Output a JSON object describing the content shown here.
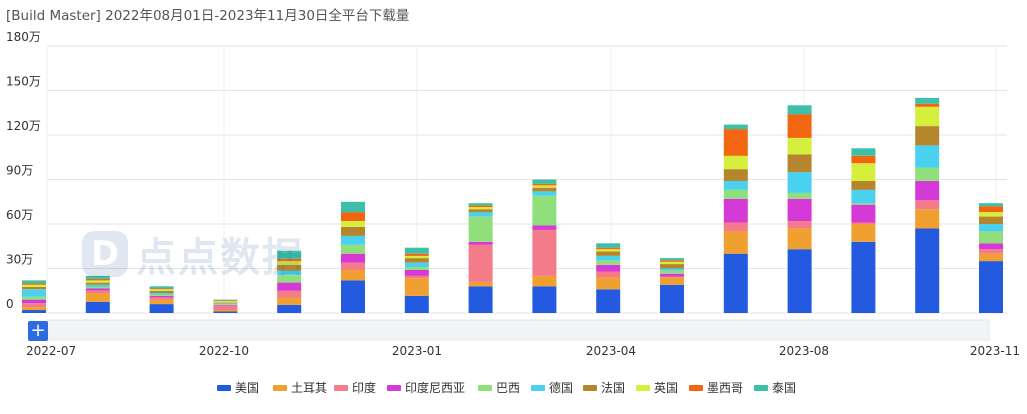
{
  "title": "[Build Master]  2022年08月01日-2023年11月30日全平台下载量",
  "watermark": {
    "text": "点点数据",
    "mark": "D"
  },
  "zoom_label": "+",
  "colors": {
    "美国": "#245ae0",
    "土耳其": "#f0a030",
    "印度": "#f47b89",
    "印度尼西亚": "#d63ad6",
    "巴西": "#8fe07a",
    "德国": "#4ad1f0",
    "法国": "#b5862e",
    "英国": "#d6ee3c",
    "墨西哥": "#f26511",
    "泰国": "#3ebfa8"
  },
  "chart_data": {
    "type": "bar",
    "stacked": true,
    "title": "[Build Master]  2022年08月01日-2023年11月30日全平台下载量",
    "y_ticks": [
      "0",
      "30万",
      "60万",
      "90万",
      "120万",
      "150万",
      "180万"
    ],
    "ylim": [
      0,
      1800000
    ],
    "x_ticks": [
      "2022-07",
      "2022-10",
      "2023-01",
      "2023-04",
      "2023-08",
      "2023-11"
    ],
    "legend_position": "bottom",
    "grid": true,
    "categories": [
      "2022-08",
      "2022-09",
      "2022-10",
      "2022-11",
      "2022-12",
      "2023-01",
      "2023-02",
      "2023-03",
      "2023-04",
      "2023-05",
      "2023-06",
      "2023-07",
      "2023-08",
      "2023-09",
      "2023-10",
      "2023-11"
    ],
    "series": [
      {
        "name": "美国",
        "values": [
          20000,
          75000,
          60000,
          10000,
          55000,
          220000,
          115000,
          180000,
          180000,
          160000,
          190000,
          400000,
          430000,
          480000,
          570000,
          350000
        ]
      },
      {
        "name": "土耳其",
        "values": [
          20000,
          60000,
          30000,
          10000,
          50000,
          70000,
          120000,
          30000,
          70000,
          80000,
          50000,
          150000,
          140000,
          120000,
          130000,
          50000
        ]
      },
      {
        "name": "印度",
        "values": [
          25000,
          15000,
          15000,
          30000,
          45000,
          50000,
          15000,
          250000,
          310000,
          40000,
          5000,
          60000,
          50000,
          10000,
          60000,
          30000
        ]
      },
      {
        "name": "印度尼西亚",
        "values": [
          25000,
          15000,
          10000,
          5000,
          55000,
          60000,
          40000,
          20000,
          30000,
          45000,
          20000,
          160000,
          150000,
          120000,
          130000,
          40000
        ]
      },
      {
        "name": "巴西",
        "values": [
          20000,
          10000,
          10000,
          5000,
          50000,
          60000,
          20000,
          170000,
          200000,
          30000,
          20000,
          60000,
          40000,
          10000,
          90000,
          80000
        ]
      },
      {
        "name": "德国",
        "values": [
          50000,
          15000,
          10000,
          5000,
          30000,
          60000,
          30000,
          30000,
          30000,
          30000,
          15000,
          60000,
          140000,
          90000,
          150000,
          50000
        ]
      },
      {
        "name": "法国",
        "values": [
          15000,
          15000,
          15000,
          5000,
          40000,
          60000,
          30000,
          20000,
          25000,
          30000,
          30000,
          80000,
          120000,
          60000,
          130000,
          50000
        ]
      },
      {
        "name": "英国",
        "values": [
          15000,
          15000,
          10000,
          10000,
          25000,
          40000,
          15000,
          15000,
          15000,
          15000,
          15000,
          90000,
          110000,
          120000,
          130000,
          30000
        ]
      },
      {
        "name": "墨西哥",
        "values": [
          10000,
          10000,
          5000,
          5000,
          15000,
          60000,
          15000,
          10000,
          10000,
          10000,
          10000,
          180000,
          160000,
          50000,
          20000,
          40000
        ]
      },
      {
        "name": "泰国",
        "values": [
          20000,
          20000,
          15000,
          5000,
          55000,
          70000,
          40000,
          15000,
          30000,
          30000,
          15000,
          30000,
          60000,
          50000,
          40000,
          20000
        ]
      }
    ]
  }
}
